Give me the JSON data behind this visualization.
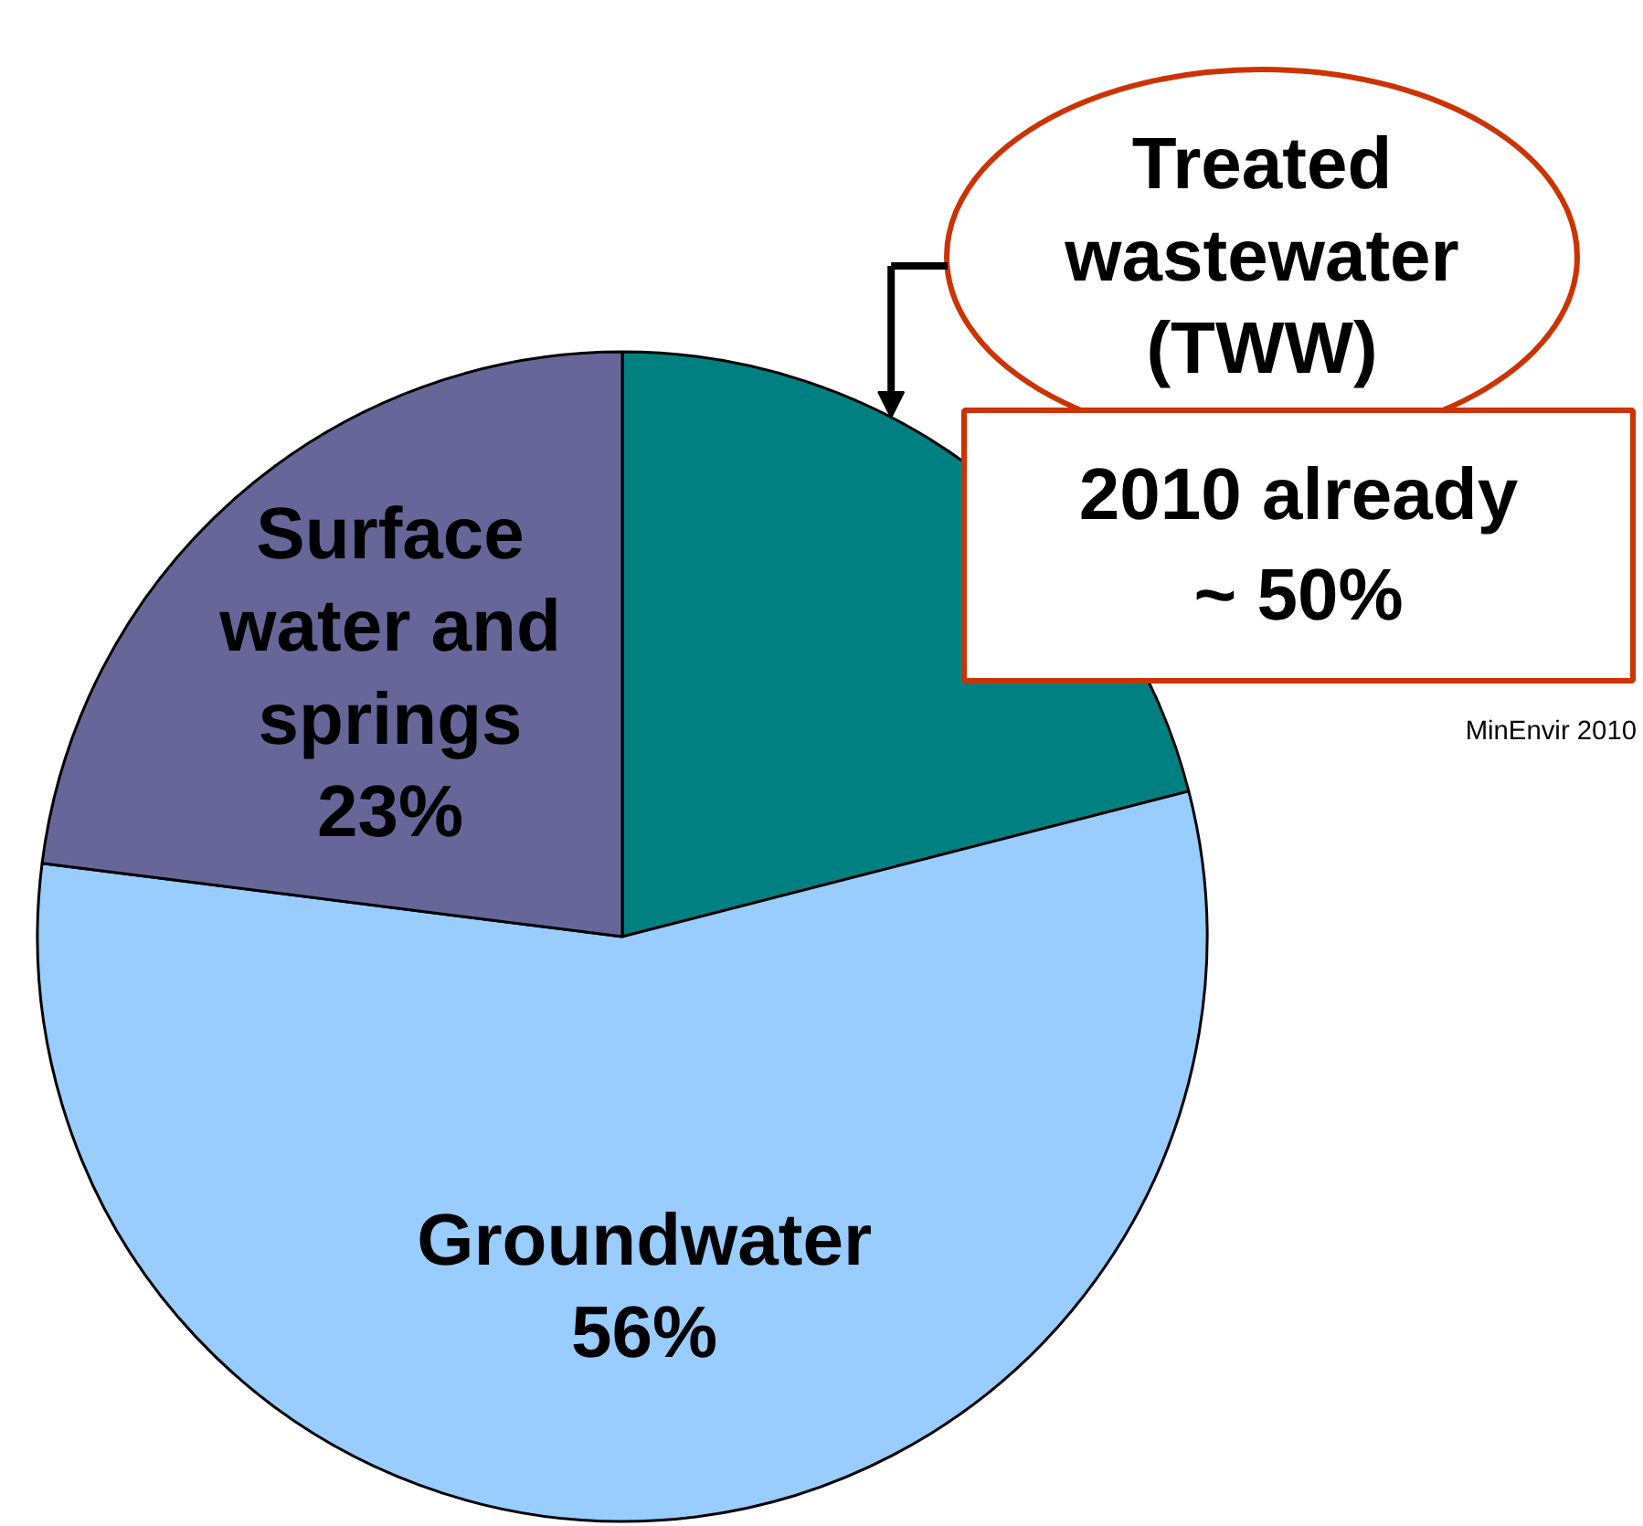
{
  "chart_data": {
    "type": "pie",
    "categories": [
      "Treated wastewater (TWW)",
      "Groundwater",
      "Surface water and springs"
    ],
    "values": [
      21,
      56,
      23
    ],
    "colors": [
      "#008080",
      "#99ccff",
      "#666699"
    ],
    "value_labels": [
      null,
      "56%",
      "23%"
    ],
    "annotations": [
      "2010 already ~ 50%",
      "MinEnvir 2010"
    ]
  }
}
